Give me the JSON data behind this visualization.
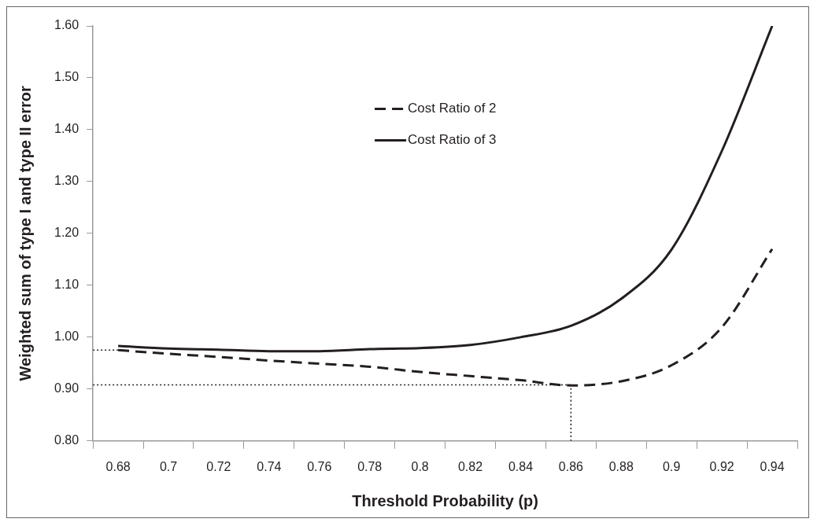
{
  "chart_data": {
    "type": "line",
    "xlabel": "Threshold Probability (p)",
    "ylabel": "Weighted sum of type I and type II error",
    "xlim": [
      0.67,
      0.95
    ],
    "xticks": [
      {
        "value": 0.67,
        "label": null
      },
      0.68,
      {
        "value": 0.69,
        "label": null
      },
      0.7,
      {
        "value": 0.71,
        "label": null
      },
      0.72,
      {
        "value": 0.73,
        "label": null
      },
      0.74,
      {
        "value": 0.75,
        "label": null
      },
      0.76,
      {
        "value": 0.77,
        "label": null
      },
      0.78,
      {
        "value": 0.79,
        "label": null
      },
      0.8,
      {
        "value": 0.81,
        "label": null
      },
      0.82,
      {
        "value": 0.83,
        "label": null
      },
      0.84,
      {
        "value": 0.85,
        "label": null
      },
      0.86,
      {
        "value": 0.87,
        "label": null
      },
      0.88,
      {
        "value": 0.89,
        "label": null
      },
      0.9,
      {
        "value": 0.91,
        "label": null
      },
      0.92,
      {
        "value": 0.93,
        "label": null
      },
      0.94,
      {
        "value": 0.95,
        "label": null
      }
    ],
    "ylim": [
      0.8,
      1.6
    ],
    "yticks": [
      {
        "value": 0.8,
        "label": "0.80"
      },
      {
        "value": 0.9,
        "label": "0.90"
      },
      {
        "value": 1.0,
        "label": "1.00"
      },
      {
        "value": 1.1,
        "label": "1.10"
      },
      {
        "value": 1.2,
        "label": "1.20"
      },
      {
        "value": 1.3,
        "label": "1.30"
      },
      {
        "value": 1.4,
        "label": "1.40"
      },
      {
        "value": 1.5,
        "label": "1.50"
      },
      {
        "value": 1.6,
        "label": "1.60"
      }
    ],
    "grid": false,
    "legend": "top",
    "marker": "none",
    "series": [
      {
        "name": "Cost Ratio of 2",
        "color": "#231f20",
        "line_style": "dashed",
        "x": [
          0.68,
          0.7,
          0.72,
          0.74,
          0.76,
          0.78,
          0.8,
          0.82,
          0.84,
          0.86,
          0.88,
          0.9,
          0.92,
          0.94
        ],
        "values": [
          0.975,
          0.968,
          0.962,
          0.955,
          0.949,
          0.943,
          0.933,
          0.925,
          0.917,
          0.907,
          0.915,
          0.946,
          1.019,
          1.17
        ]
      },
      {
        "name": "Cost Ratio of 3",
        "color": "#231f20",
        "line_style": "solid",
        "x": [
          0.68,
          0.7,
          0.72,
          0.74,
          0.76,
          0.78,
          0.8,
          0.82,
          0.84,
          0.86,
          0.88,
          0.9,
          0.92,
          0.94
        ],
        "values": [
          0.983,
          0.978,
          0.976,
          0.973,
          0.973,
          0.977,
          0.979,
          0.985,
          1.0,
          1.022,
          1.074,
          1.169,
          1.359,
          1.6
        ]
      },
      {
        "color": "#231f20",
        "line_style": "dotted",
        "x": [
          0.67,
          0.68
        ],
        "values": [
          0.975,
          0.975
        ]
      },
      {
        "color": "#231f20",
        "line_style": "dotted",
        "x": [
          0.67,
          0.86
        ],
        "values": [
          0.908,
          0.908
        ]
      },
      {
        "color": "#231f20",
        "line_style": "dotted",
        "x": [
          0.86,
          0.86
        ],
        "values": [
          0.8,
          0.908
        ]
      }
    ]
  }
}
